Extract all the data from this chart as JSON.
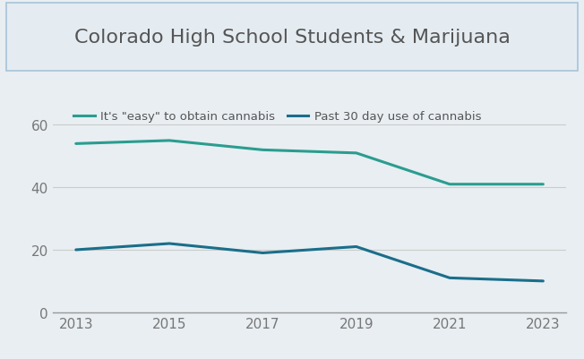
{
  "title": "Colorado High School Students & Marijuana",
  "years": [
    2013,
    2015,
    2017,
    2019,
    2021,
    2023
  ],
  "easy_to_obtain": [
    54,
    55,
    52,
    51,
    41,
    41
  ],
  "past_30_day_use": [
    20,
    22,
    19,
    21,
    11,
    10
  ],
  "color_easy": "#2a9d8f",
  "color_use": "#1a6e8a",
  "legend_easy": "It's \"easy\" to obtain cannabis",
  "legend_use": "Past 30 day use of cannabis",
  "yticks": [
    0,
    20,
    40,
    60
  ],
  "ylim": [
    0,
    68
  ],
  "xticks": [
    2013,
    2015,
    2017,
    2019,
    2021,
    2023
  ],
  "background_color": "#e8eef2",
  "title_box_facecolor": "#e4ecf2",
  "title_box_edgecolor": "#a8c4d8",
  "title_fontsize": 16,
  "legend_fontsize": 9.5,
  "tick_fontsize": 11,
  "line_width": 2.2,
  "title_color": "#555555",
  "tick_color": "#777777",
  "grid_color": "#cccccc",
  "spine_color": "#999999"
}
